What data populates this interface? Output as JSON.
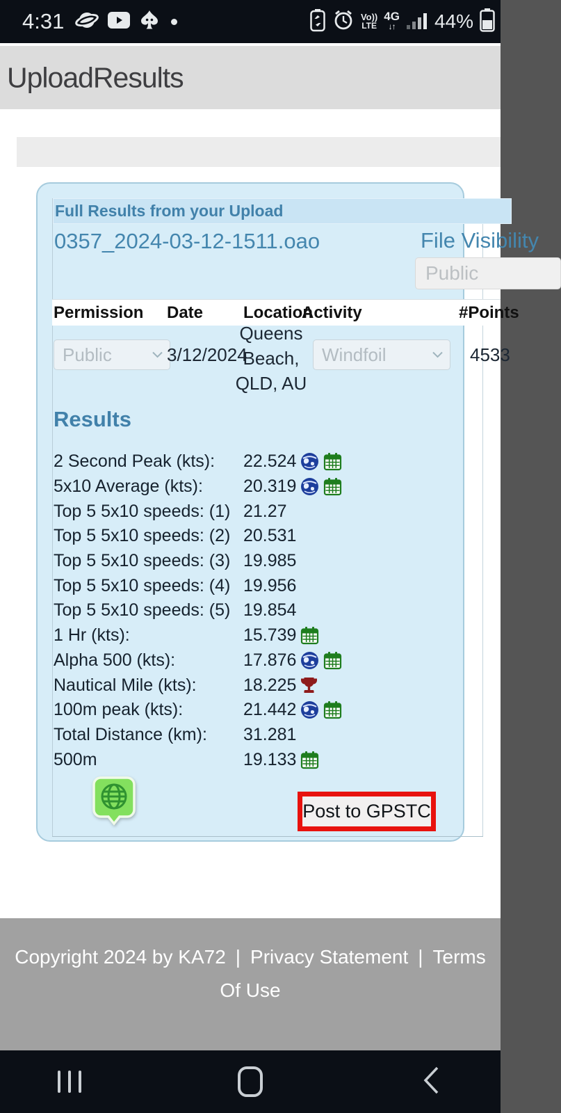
{
  "status_bar": {
    "time": "4:31",
    "notification_icons": [
      "planet-icon",
      "youtube-icon",
      "spade-icon",
      "notification-dot"
    ],
    "volte_line1": "Vo))",
    "volte_line2": "LTE",
    "network": "4G",
    "network_arrows": "↓↑",
    "battery_percent": "44%"
  },
  "app_header": {
    "title": "UploadResults"
  },
  "upload_card": {
    "panel_title": "Full Results from your Upload",
    "file_name": "0357_2024-03-12-1511.oao",
    "file_visibility_label": "File Visibility",
    "file_visibility_value": "Public",
    "table": {
      "headers": [
        "Permission",
        "Date",
        "Location",
        "Activity",
        "#Points"
      ],
      "row": {
        "permission": "Public",
        "date": "3/12/2024",
        "location": "Queens Beach, QLD, AU",
        "activity": "Windfoil",
        "points": "4533"
      }
    },
    "results": {
      "title": "Results",
      "rows": [
        {
          "label": "2 Second Peak (kts):",
          "value": "22.524",
          "icons": [
            "globe",
            "calendar"
          ]
        },
        {
          "label": "5x10 Average (kts):",
          "value": "20.319",
          "icons": [
            "globe",
            "calendar"
          ]
        },
        {
          "label": "Top 5 5x10 speeds: (1)",
          "value": "21.27",
          "icons": []
        },
        {
          "label": "Top 5 5x10 speeds: (2)",
          "value": "20.531",
          "icons": []
        },
        {
          "label": "Top 5 5x10 speeds: (3)",
          "value": "19.985",
          "icons": []
        },
        {
          "label": "Top 5 5x10 speeds: (4)",
          "value": "19.956",
          "icons": []
        },
        {
          "label": "Top 5 5x10 speeds: (5)",
          "value": "19.854",
          "icons": []
        },
        {
          "label": "1 Hr (kts):",
          "value": "15.739",
          "icons": [
            "calendar"
          ]
        },
        {
          "label": "Alpha 500 (kts):",
          "value": "17.876",
          "icons": [
            "globe",
            "calendar"
          ]
        },
        {
          "label": "Nautical Mile (kts):",
          "value": "18.225",
          "icons": [
            "trophy"
          ]
        },
        {
          "label": "100m peak (kts):",
          "value": "21.442",
          "icons": [
            "globe",
            "calendar"
          ]
        },
        {
          "label": "Total Distance (km):",
          "value": "31.281",
          "icons": []
        },
        {
          "label": "500m",
          "value": "19.133",
          "icons": [
            "calendar"
          ]
        }
      ]
    },
    "post_button_label": "Post to GPSTC",
    "map_pin_icon": "globe-pin-icon"
  },
  "footer": {
    "copyright": "Copyright 2024 by KA72",
    "separator": "|",
    "links": [
      "Privacy Statement",
      "Terms Of Use"
    ]
  },
  "nav_bar": {
    "buttons": [
      "recents",
      "home",
      "back"
    ]
  },
  "colors": {
    "card_bg": "#d7edf8",
    "accent_teal": "#4181aa",
    "button_border_red": "#e8120e",
    "calendar_green": "#1e7d1e",
    "globe_blue": "#1d3e9c",
    "trophy_red": "#8e1b1b",
    "pin_green": "#83e05e",
    "footer_gray": "#a1a1a1",
    "statusbar_dark": "#0b0f16"
  }
}
